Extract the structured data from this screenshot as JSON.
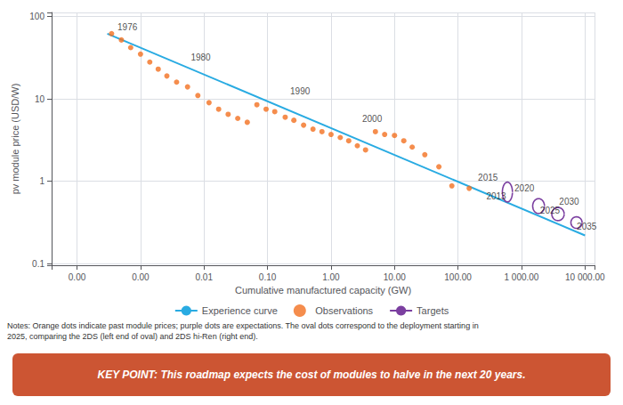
{
  "chart_data": {
    "type": "line",
    "xlabel": "Cumulative manufactured capacity (GW)",
    "ylabel": "pv module price (USD/W)",
    "log": true,
    "grid": true,
    "legend": "bottom",
    "xlim": [
      3.981071705534969e-05,
      14125.375446227554
    ],
    "ylim": [
      0.0954992586021436,
      112.2018454301963
    ],
    "xticks": [
      {
        "value": 0.0001,
        "label": "0.00"
      },
      {
        "value": 0.001,
        "label": "0.00"
      },
      0.01,
      {
        "value": 0.1,
        "label": "0.10"
      },
      {
        "value": 1.0,
        "label": "1.00"
      },
      {
        "value": 10.0,
        "label": "10.00"
      },
      {
        "value": 100.0,
        "label": "100.00"
      },
      {
        "value": 1000.0,
        "label": "1 000.00"
      },
      {
        "value": 10000.0,
        "label": "10 000.00"
      }
    ],
    "yticks": [
      0.1,
      1,
      10,
      100
    ],
    "series": [
      {
        "name": "Experience curve",
        "type": "line",
        "color": "#29abe2",
        "x": [
          0.0003,
          10000
        ],
        "values": [
          62,
          0.22
        ]
      },
      {
        "name": "Observations",
        "type": "scatter",
        "color": "#f37021",
        "x": [
          0.00035,
          0.0005,
          0.0007,
          0.001,
          0.0014,
          0.0019,
          0.0026,
          0.0037,
          0.0055,
          0.008,
          0.012,
          0.017,
          0.024,
          0.034,
          0.048,
          0.068,
          0.095,
          0.13,
          0.19,
          0.26,
          0.37,
          0.52,
          0.72,
          1.0,
          1.4,
          1.9,
          2.6,
          3.5,
          5.0,
          7.0,
          10,
          14,
          19,
          30,
          50,
          80,
          150
        ],
        "values": [
          62,
          52,
          42,
          35,
          28,
          23,
          19,
          16,
          14,
          11,
          9.0,
          7.5,
          6.5,
          5.8,
          5.2,
          8.5,
          7.5,
          7.0,
          6.0,
          5.5,
          4.8,
          4.3,
          4.0,
          3.7,
          3.4,
          3.1,
          2.7,
          2.4,
          4.0,
          3.7,
          3.6,
          3.1,
          2.6,
          2.1,
          1.5,
          0.88,
          0.82
        ]
      },
      {
        "name": "Targets",
        "type": "ellipse",
        "color": "#7b3fa0",
        "x_left": [
          500,
          1500,
          3000,
          6000
        ],
        "x_right": [
          720,
          2300,
          4700,
          9000
        ],
        "y_center": [
          0.74,
          0.5,
          0.4,
          0.315
        ],
        "y_half_height_log10": [
          0.12,
          0.09,
          0.08,
          0.07
        ]
      }
    ],
    "annotations": [
      {
        "text": "1976",
        "x": 0.00042,
        "y": 75
      },
      {
        "text": "1980",
        "x": 0.006,
        "y": 32
      },
      {
        "text": "1990",
        "x": 0.22,
        "y": 12.5
      },
      {
        "text": "2000",
        "x": 3.0,
        "y": 5.8
      },
      {
        "text": "2015",
        "x": 200,
        "y": 1.12
      },
      {
        "text": "2013",
        "x": 270,
        "y": 0.65
      },
      {
        "text": "2020",
        "x": 750,
        "y": 0.83
      },
      {
        "text": "2025",
        "x": 1900,
        "y": 0.44
      },
      {
        "text": "2030",
        "x": 3800,
        "y": 0.57
      },
      {
        "text": "2035",
        "x": 7200,
        "y": 0.285
      }
    ],
    "notes": "Notes: Orange dots indicate past module prices; purple dots are expectations. The oval dots correspond to the deployment starting in\n2025, comparing the 2DS (left end of oval) and 2DS hi-Ren (right end).",
    "key_point": {
      "text": "KEY POINT: This roadmap expects the cost of modules to halve in the next 20 years.",
      "color": "#cc5533"
    }
  }
}
